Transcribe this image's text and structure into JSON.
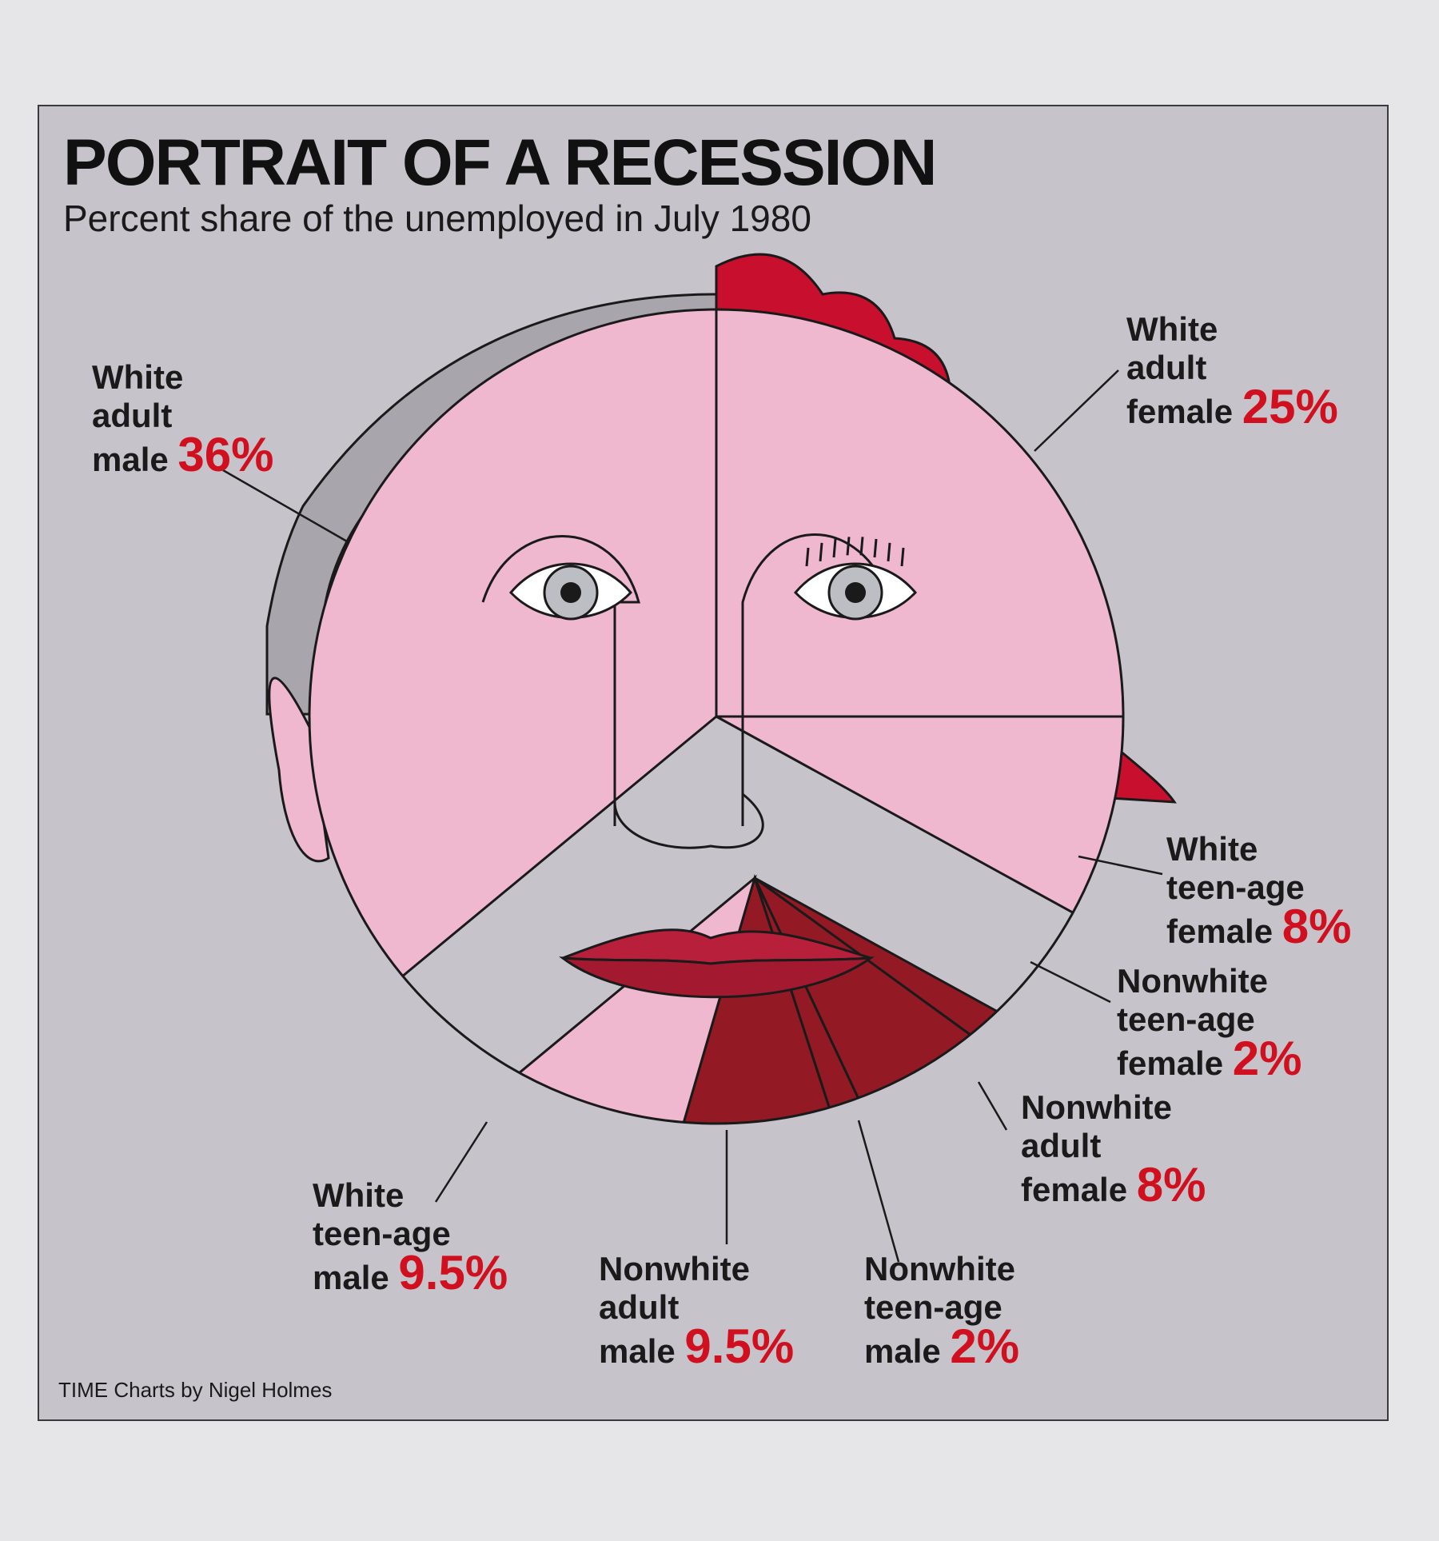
{
  "chart_data": {
    "type": "pie",
    "title": "PORTRAIT OF A RECESSION",
    "subtitle": "Percent share of the unemployed in July 1980",
    "credit": "TIME Charts by Nigel Holmes",
    "unit": "%",
    "slices": [
      {
        "label_lines": [
          "White",
          "adult",
          "male"
        ],
        "pct_text": "36%",
        "value": 36
      },
      {
        "label_lines": [
          "White",
          "adult",
          "female"
        ],
        "pct_text": "25%",
        "value": 25
      },
      {
        "label_lines": [
          "White",
          "teen-age",
          "female"
        ],
        "pct_text": "8%",
        "value": 8
      },
      {
        "label_lines": [
          "Nonwhite",
          "teen-age",
          "female"
        ],
        "pct_text": "2%",
        "value": 2
      },
      {
        "label_lines": [
          "Nonwhite",
          "adult",
          "female"
        ],
        "pct_text": "8%",
        "value": 8
      },
      {
        "label_lines": [
          "Nonwhite",
          "teen-age",
          "male"
        ],
        "pct_text": "2%",
        "value": 2
      },
      {
        "label_lines": [
          "Nonwhite",
          "adult",
          "male"
        ],
        "pct_text": "9.5%",
        "value": 9.5
      },
      {
        "label_lines": [
          "White",
          "teen-age",
          "male"
        ],
        "pct_text": "9.5%",
        "value": 9.5
      }
    ],
    "colors": {
      "background": "#c6c3cb",
      "white_face": "#f0b8cf",
      "nonwhite_face": "#931a24",
      "female_hair": "#c8102e",
      "male_hair": "#a8a6ac",
      "percent_text": "#d0101e",
      "lips": "#b81f3a"
    }
  }
}
